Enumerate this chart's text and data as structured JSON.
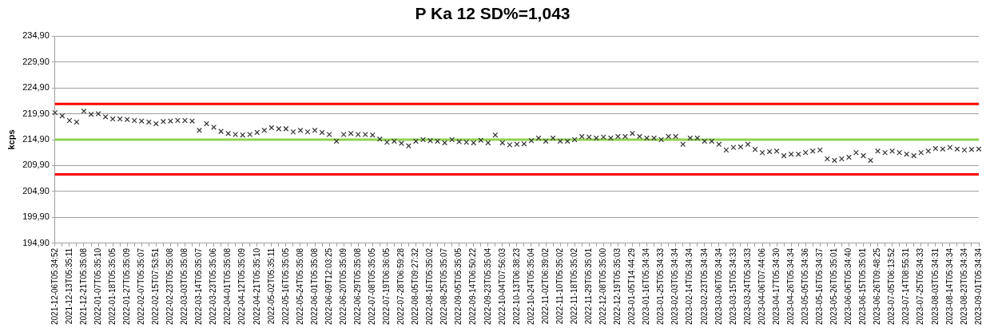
{
  "chart_data": {
    "type": "scatter",
    "title": "P Ka 12 SD%=1,043",
    "ylabel": "kcps",
    "categories": [
      "2021-12-06T05:34:52",
      null,
      "2021-12-13T05:35:11",
      null,
      "2021-12-21T05:35:08",
      null,
      "2022-01-07T05:35:10",
      null,
      "2022-01-18T05:35:05",
      null,
      "2022-01-27T05:35:09",
      null,
      "2022-02-07T05:35:07",
      null,
      "2022-02-15T07:53:51",
      null,
      "2022-02-23T05:35:08",
      null,
      "2022-03-03T05:35:08",
      null,
      "2022-03-14T05:35:07",
      null,
      "2022-03-23T05:35:06",
      null,
      "2022-04-01T05:35:08",
      null,
      "2022-04-12T05:35:09",
      null,
      "2022-04-21T05:35:10",
      null,
      "2022-05-02T05:35:11",
      null,
      "2022-05-16T05:35:05",
      null,
      "2022-05-24T05:35:08",
      null,
      "2022-06-01T05:35:08",
      null,
      "2022-06-09T12:03:25",
      null,
      "2022-06-20T05:35:09",
      null,
      "2022-06-29T05:35:08",
      null,
      "2022-07-08T05:35:05",
      null,
      "2022-07-19T06:36:05",
      null,
      "2022-07-28T06:59:28",
      null,
      "2022-08-05T09:27:32",
      null,
      "2022-08-16T05:35:02",
      null,
      "2022-08-25T05:35:07",
      null,
      "2022-09-05T05:35:05",
      null,
      "2022-09-14T06:50:22",
      null,
      "2022-09-23T05:35:04",
      null,
      "2022-10-04T07:56:03",
      null,
      "2022-10-13T06:38:23",
      null,
      "2022-10-24T05:35:04",
      null,
      "2022-11-02T06:39:02",
      null,
      "2022-11-10T05:35:02",
      null,
      "2022-11-18T05:35:02",
      null,
      "2022-11-29T05:35:01",
      null,
      "2022-12-08T05:35:00",
      null,
      "2022-12-19T05:35:03",
      null,
      "2023-01-05T14:44:29",
      null,
      "2023-01-16T05:34:34",
      null,
      "2023-01-25T05:34:33",
      null,
      "2023-02-03T05:34:34",
      null,
      "2023-02-14T05:34:34",
      null,
      "2023-02-23T05:34:34",
      null,
      "2023-03-06T05:34:34",
      null,
      "2023-03-15T05:34:33",
      null,
      "2023-03-24T05:34:33",
      null,
      "2023-04-06T07:44:06",
      null,
      "2023-04-17T05:34:30",
      null,
      "2023-04-26T05:34:34",
      null,
      "2023-05-05T05:34:36",
      null,
      "2023-05-16T05:34:37",
      null,
      "2023-05-26T05:35:01",
      null,
      "2023-06-06T05:34:40",
      null,
      "2023-06-15T05:35:01",
      null,
      "2023-06-26T09:48:25",
      null,
      "2023-07-05T06:13:52",
      null,
      "2023-07-14T08:55:31",
      null,
      "2023-07-25T05:34:33",
      null,
      "2023-08-03T05:34:31",
      null,
      "2023-08-14T05:34:34",
      null,
      "2023-08-23T05:34:34",
      null,
      "2023-09-01T05:34:34"
    ],
    "series": [
      {
        "color": "#333333",
        "values": [
          220.1,
          219.5,
          218.6,
          218.3,
          220.4,
          219.8,
          219.9,
          219.3,
          218.9,
          218.9,
          218.8,
          218.6,
          218.5,
          218.3,
          218.0,
          218.4,
          218.5,
          218.6,
          218.6,
          218.5,
          216.7,
          218.0,
          217.3,
          216.5,
          216.1,
          215.9,
          215.8,
          215.9,
          216.3,
          216.7,
          217.2,
          217.0,
          217.0,
          216.4,
          216.7,
          216.4,
          216.7,
          216.3,
          215.9,
          214.6,
          215.9,
          216.1,
          215.9,
          215.9,
          215.8,
          215.0,
          214.4,
          214.6,
          214.2,
          213.7,
          214.6,
          214.9,
          214.7,
          214.6,
          214.3,
          214.9,
          214.5,
          214.4,
          214.3,
          214.8,
          214.3,
          215.8,
          214.3,
          213.9,
          214.0,
          214.1,
          214.7,
          215.2,
          214.6,
          215.2,
          214.6,
          214.6,
          214.9,
          215.5,
          215.4,
          215.2,
          215.4,
          215.2,
          215.5,
          215.5,
          216.1,
          215.5,
          215.2,
          215.2,
          214.9,
          215.5,
          215.5,
          214.0,
          215.2,
          215.2,
          214.6,
          214.6,
          214.0,
          212.9,
          213.4,
          213.5,
          214.0,
          213.0,
          212.4,
          212.6,
          212.7,
          211.8,
          212.1,
          212.1,
          212.4,
          212.7,
          212.9,
          211.2,
          210.9,
          211.2,
          211.5,
          212.4,
          211.8,
          210.9,
          212.7,
          212.4,
          212.7,
          212.4,
          212.1,
          211.8,
          212.4,
          212.7,
          213.2,
          213.1,
          213.4,
          213.1,
          212.9,
          213.0,
          213.1
        ]
      }
    ],
    "ylim": [
      194.9,
      234.9
    ],
    "yticks": [
      {
        "value": 194.9,
        "label": "194,90"
      },
      {
        "value": 199.9,
        "label": "199,90"
      },
      {
        "value": 204.9,
        "label": "204,90"
      },
      {
        "value": 209.9,
        "label": "209,90"
      },
      {
        "value": 214.9,
        "label": "214,90"
      },
      {
        "value": 219.9,
        "label": "219,90"
      },
      {
        "value": 224.9,
        "label": "224,90"
      },
      {
        "value": 229.9,
        "label": "229,90"
      },
      {
        "value": 234.9,
        "label": "234,90"
      }
    ],
    "ref_lines": [
      {
        "axis": "y",
        "value": 221.8,
        "color": "#ff0000"
      },
      {
        "axis": "y",
        "value": 214.9,
        "color": "#92d050"
      },
      {
        "axis": "y",
        "value": 208.2,
        "color": "#ff0000"
      }
    ],
    "grid": "y",
    "legend": false,
    "marker": "cross"
  }
}
